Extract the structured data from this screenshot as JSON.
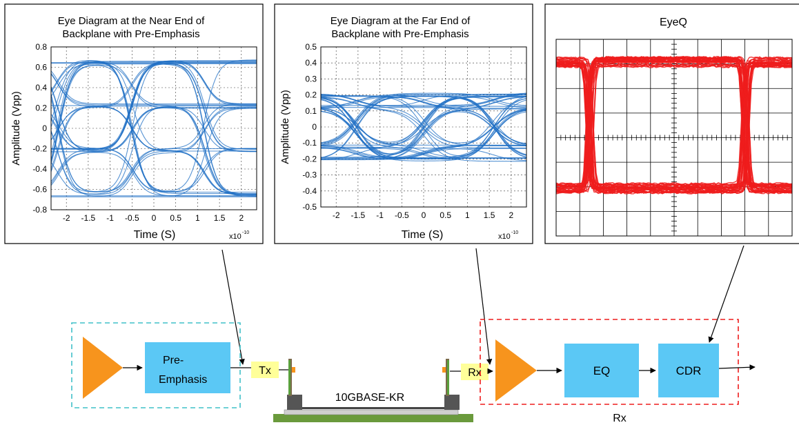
{
  "panels": {
    "near": {
      "title_line1": "Eye Diagram at the Near End of",
      "title_line2": "Backplane with Pre-Emphasis",
      "ylabel": "Amplitude (Vpp)",
      "xlabel": "Time (S)",
      "x_exponent_base": "x10",
      "x_exponent_power": "-10"
    },
    "far": {
      "title_line1": "Eye Diagram at the Far End of",
      "title_line2": "Backplane with Pre-Emphasis",
      "ylabel": "Amplitude (Vpp)",
      "xlabel": "Time (S)",
      "x_exponent_base": "x10",
      "x_exponent_power": "-10"
    },
    "eyeq": {
      "title": "EyeQ"
    }
  },
  "blocks": {
    "pre_emphasis_line1": "Pre-",
    "pre_emphasis_line2": "Emphasis",
    "tx": "Tx",
    "rx": "Rx",
    "eq": "EQ",
    "cdr": "CDR",
    "backplane": "10GBASE-KR",
    "rx_group": "Rx"
  },
  "colors": {
    "eye_trace": "#1f6fc4",
    "eyeq_trace": "#ee1c1c",
    "amplifier": "#f7941d",
    "block_fill": "#5bc8f5",
    "label_fill": "#ffff99",
    "tx_group_border": "#3fc0c8",
    "rx_group_border": "#ee1c1c",
    "backplane_base": "#6a9a3c"
  },
  "chart_data": [
    {
      "type": "line",
      "title": "Eye Diagram at the Near End of Backplane with Pre-Emphasis",
      "xlabel": "Time (S)",
      "ylabel": "Amplitude (Vpp)",
      "x_scale_note": "x10^-10",
      "xlim": [
        -2.35,
        2.35
      ],
      "ylim": [
        -0.8,
        0.8
      ],
      "x_ticks": [
        "-2",
        "-1.5",
        "-1",
        "-0.5",
        "0",
        "0.5",
        "1",
        "1.5",
        "2"
      ],
      "y_ticks": [
        "0.8",
        "0.6",
        "0.4",
        "0.2",
        "0",
        "-0.2",
        "-0.4",
        "-0.6",
        "-0.8"
      ],
      "grid": true,
      "levels": [
        -0.65,
        -0.22,
        0.22,
        0.65
      ],
      "transition_centers": [
        -2.2,
        -0.5,
        1.15
      ]
    },
    {
      "type": "line",
      "title": "Eye Diagram at the Far End of Backplane with Pre-Emphasis",
      "xlabel": "Time (S)",
      "ylabel": "Amplitude (Vpp)",
      "x_scale_note": "x10^-10",
      "xlim": [
        -2.35,
        2.35
      ],
      "ylim": [
        -0.5,
        0.5
      ],
      "x_ticks": [
        "-2",
        "-1.5",
        "-1",
        "-0.5",
        "0",
        "0.5",
        "1",
        "1.5",
        "2"
      ],
      "y_ticks": [
        "0.5",
        "0.4",
        "0.3",
        "0.2",
        "0.1",
        "0",
        "-0.1",
        "-0.2",
        "-0.3",
        "-0.4",
        "-0.5"
      ],
      "grid": true,
      "levels": [
        -0.2,
        -0.12,
        0.12,
        0.2
      ],
      "transition_centers": [
        -1.55,
        0.0,
        1.6
      ]
    }
  ]
}
